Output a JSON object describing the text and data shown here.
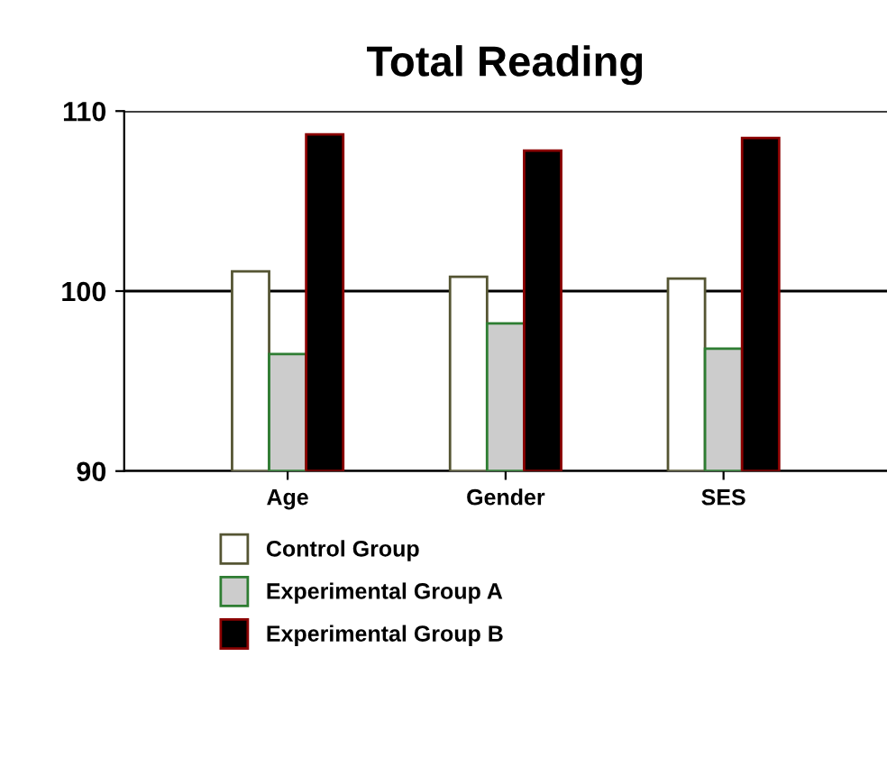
{
  "chart_data": {
    "type": "bar",
    "title": "Total Reading",
    "categories": [
      "Age",
      "Gender",
      "SES"
    ],
    "series": [
      {
        "name": "Control Group",
        "color": "#ffffff",
        "values": [
          101.1,
          100.8,
          100.7
        ]
      },
      {
        "name": "Experimental Group A",
        "color": "#cccccc",
        "values": [
          96.5,
          98.2,
          96.8
        ]
      },
      {
        "name": "Experimental Group B",
        "color": "#000000",
        "values": [
          108.7,
          107.8,
          108.5
        ]
      }
    ],
    "ylim": [
      90,
      110
    ],
    "yticks": [
      90,
      100,
      110
    ],
    "grid": "y",
    "legend": "bottom"
  }
}
